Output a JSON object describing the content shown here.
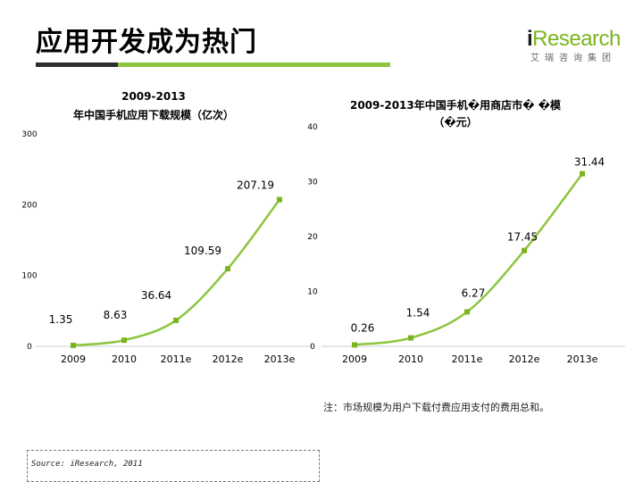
{
  "page": {
    "title": "应用开发成为热门"
  },
  "logo": {
    "text_i": "i",
    "text_rest": "Research",
    "subtitle": "艾瑞咨询集团"
  },
  "note": "注：市场规模为用户下载付费应用支付的费用总和。",
  "source": "Source: iResearch, 2011",
  "colors": {
    "series": "#8cc63f",
    "marker": "#7ab51d",
    "bar_dark": "#2e2e2e",
    "bar_green": "#8cc63f"
  },
  "chart_data": [
    {
      "type": "line",
      "title_line1": "2009-2013",
      "title_line2": "年中国手机应用下载规模（亿次）",
      "categories": [
        "2009",
        "2010",
        "2011e",
        "2012e",
        "2013e"
      ],
      "values": [
        1.35,
        8.63,
        36.64,
        109.59,
        207.19
      ],
      "value_labels": [
        "1.35",
        "8.63",
        "36.64",
        "109.59",
        "207.19"
      ],
      "yticks": [
        "0",
        "100",
        "200",
        "300"
      ],
      "ylim": [
        0,
        300
      ],
      "xlabel": "",
      "ylabel": ""
    },
    {
      "type": "line",
      "title_line1": "2009-2013年中国手机�用商店市� �模",
      "title_line2": "（�元）",
      "categories": [
        "2009",
        "2010",
        "2011e",
        "2012e",
        "2013e"
      ],
      "values": [
        0.26,
        1.54,
        6.27,
        17.45,
        31.44
      ],
      "value_labels": [
        "0.26",
        "1.54",
        "6.27",
        "17.45",
        "31.44"
      ],
      "yticks": [
        "0",
        "10",
        "20",
        "30",
        "40"
      ],
      "ylim": [
        0,
        40
      ],
      "xlabel": "",
      "ylabel": ""
    }
  ]
}
